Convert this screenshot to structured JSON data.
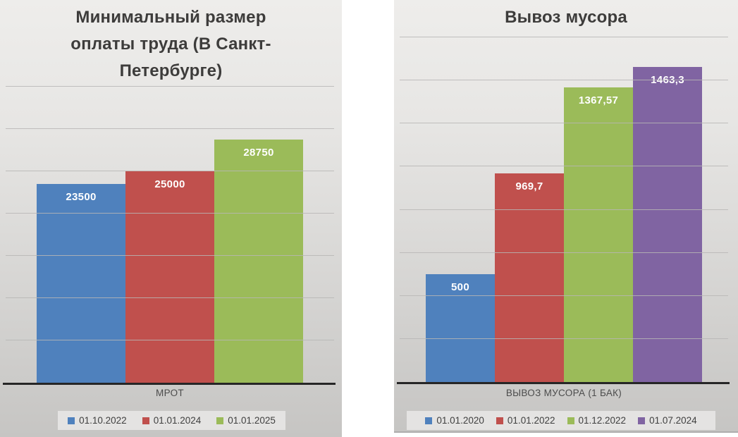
{
  "colors": {
    "series_blue": "#4F81BD",
    "series_red": "#C0504D",
    "series_green": "#9BBB59",
    "series_purple": "#8064A2",
    "axis_line": "#262626",
    "gridline": "#B7B6B5",
    "title_text": "#3D3C3B",
    "data_label_text": "#FFFFFF",
    "legend_background": "#E4E3E2"
  },
  "chart_data": [
    {
      "type": "bar",
      "title": "Минимальный размер оплаты труда (В Санкт-Петербурге)",
      "title_lines": [
        "Минимальный размер",
        "оплаты труда (В Санкт-",
        "Петербурге)"
      ],
      "categories": [
        "МРОТ"
      ],
      "series": [
        {
          "name": "01.10.2022",
          "values": [
            23500
          ],
          "color": "#4F81BD"
        },
        {
          "name": "01.01.2024",
          "values": [
            25000
          ],
          "color": "#C0504D"
        },
        {
          "name": "01.01.2025",
          "values": [
            28750
          ],
          "color": "#9BBB59"
        }
      ],
      "data_labels": [
        "23500",
        "25000",
        "28750"
      ],
      "xlabel": "",
      "ylabel": "",
      "ylim": [
        0,
        35000
      ],
      "ytick_step": 5000,
      "grid": true,
      "legend_position": "bottom"
    },
    {
      "type": "bar",
      "title": "Вывоз мусора",
      "title_lines": [
        "Вывоз мусора"
      ],
      "categories": [
        "ВЫВОЗ МУСОРА (1 БАК)"
      ],
      "series": [
        {
          "name": "01.01.2020",
          "values": [
            500
          ],
          "color": "#4F81BD"
        },
        {
          "name": "01.01.2022",
          "values": [
            969.7
          ],
          "color": "#C0504D"
        },
        {
          "name": "01.12.2022",
          "values": [
            1367.57
          ],
          "color": "#9BBB59"
        },
        {
          "name": "01.07.2024",
          "values": [
            1463.3
          ],
          "color": "#8064A2"
        }
      ],
      "data_labels": [
        "500",
        "969,7",
        "1367,57",
        "1463,3"
      ],
      "xlabel": "",
      "ylabel": "",
      "ylim": [
        0,
        1600
      ],
      "ytick_step": 200,
      "grid": true,
      "legend_position": "bottom"
    }
  ]
}
